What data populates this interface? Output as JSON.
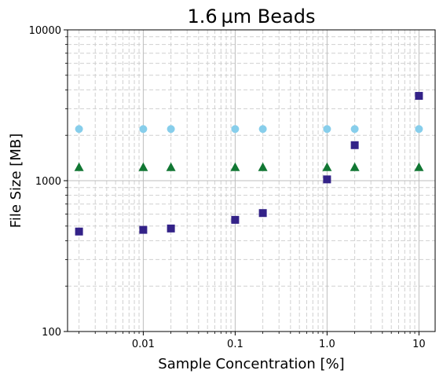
{
  "chart_data": {
    "type": "scatter",
    "title": "1.6 µm Beads",
    "xlabel": "Sample Concentration [%]",
    "ylabel": "File Size [MB]",
    "xscale": "log",
    "yscale": "log",
    "xlim": [
      0.0015,
      15
    ],
    "ylim": [
      100,
      10000
    ],
    "x_ticks": [
      {
        "value": 0.01,
        "label": "0.01"
      },
      {
        "value": 0.1,
        "label": "0.1"
      },
      {
        "value": 1,
        "label": "1.0"
      },
      {
        "value": 10,
        "label": "10"
      }
    ],
    "y_ticks": [
      {
        "value": 100,
        "label": "100"
      },
      {
        "value": 1000,
        "label": "1000"
      },
      {
        "value": 10000,
        "label": "10000"
      }
    ],
    "grid": true,
    "legend": "none",
    "series": [
      {
        "marker": "circle",
        "color": "#87ceeb",
        "x": [
          0.002,
          0.01,
          0.02,
          0.1,
          0.2,
          1,
          2,
          10
        ],
        "y": [
          2200,
          2200,
          2200,
          2200,
          2200,
          2200,
          2200,
          2200
        ]
      },
      {
        "marker": "triangle",
        "color": "#117733",
        "x": [
          0.002,
          0.01,
          0.02,
          0.1,
          0.2,
          1,
          2,
          10
        ],
        "y": [
          1230,
          1230,
          1230,
          1230,
          1230,
          1230,
          1230,
          1230
        ]
      },
      {
        "marker": "square",
        "color": "#332288",
        "x": [
          0.002,
          0.01,
          0.02,
          0.1,
          0.2,
          1,
          2,
          10
        ],
        "y": [
          460,
          472,
          482,
          550,
          610,
          1020,
          1720,
          3650
        ]
      }
    ]
  }
}
